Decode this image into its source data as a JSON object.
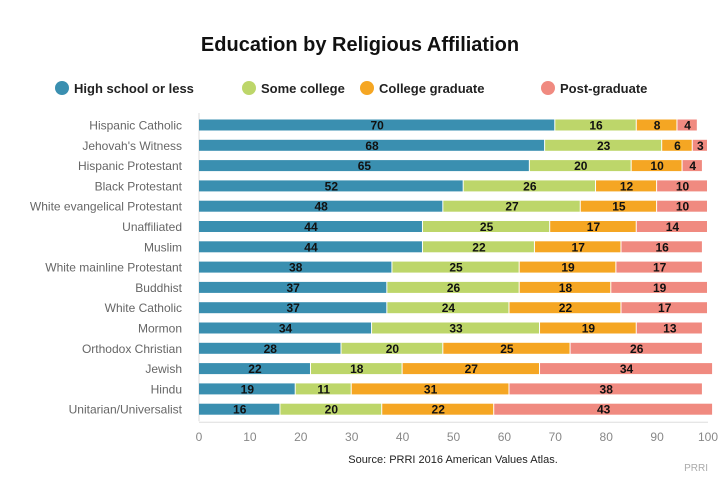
{
  "chart_data": {
    "type": "bar",
    "orientation": "horizontal",
    "stacked": true,
    "title": "Education by Religious Affiliation",
    "source": "Source: PRRI 2016 American Values Atlas.",
    "watermark": "PRRI",
    "legend_position": "top",
    "xlim": [
      0,
      100
    ],
    "xticks": [
      0,
      10,
      20,
      30,
      40,
      50,
      60,
      70,
      80,
      90,
      100
    ],
    "categories": [
      "Hispanic Catholic",
      "Jehovah's Witness",
      "Hispanic Protestant",
      "Black Protestant",
      "White evangelical Protestant",
      "Unaffiliated",
      "Muslim",
      "White mainline Protestant",
      "Buddhist",
      "White Catholic",
      "Mormon",
      "Orthodox Christian",
      "Jewish",
      "Hindu",
      "Unitarian/Universalist"
    ],
    "series": [
      {
        "name": "High school or less",
        "color": "#3a8fb0",
        "values": [
          70,
          68,
          65,
          52,
          48,
          44,
          44,
          38,
          37,
          37,
          34,
          28,
          22,
          19,
          16
        ]
      },
      {
        "name": "Some college",
        "color": "#bdd66a",
        "values": [
          16,
          23,
          20,
          26,
          27,
          25,
          22,
          25,
          26,
          24,
          33,
          20,
          18,
          11,
          20
        ]
      },
      {
        "name": "College graduate",
        "color": "#f5a623",
        "values": [
          8,
          6,
          10,
          12,
          15,
          17,
          17,
          19,
          18,
          22,
          19,
          25,
          27,
          31,
          22
        ]
      },
      {
        "name": "Post-graduate",
        "color": "#f08a80",
        "values": [
          4,
          3,
          4,
          10,
          10,
          14,
          16,
          17,
          19,
          17,
          13,
          26,
          34,
          38,
          43
        ]
      }
    ]
  }
}
